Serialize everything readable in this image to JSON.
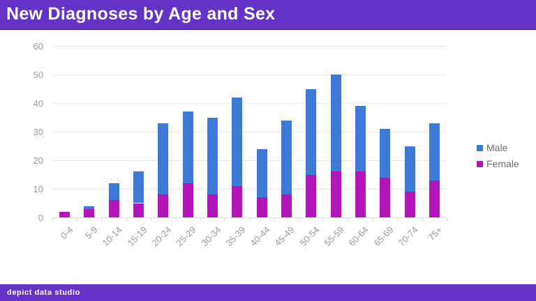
{
  "header": {
    "title": "New Diagnoses by Age and Sex"
  },
  "footer": {
    "brand": "depict data studio"
  },
  "colors": {
    "banner_bg": "#6333C6",
    "banner_edge": "#5A2DB4",
    "male": "#3D7AD8",
    "female": "#B215B8",
    "gridline": "#E7E7E7",
    "axis_line": "#DCDCDC",
    "axis_text": "#9B9B9B",
    "legend_text": "#6E6E6E"
  },
  "legend": {
    "position": "right",
    "items": [
      {
        "label": "Male",
        "color": "#3D7AD8"
      },
      {
        "label": "Female",
        "color": "#B215B8"
      }
    ]
  },
  "chart_data": {
    "type": "bar",
    "stacked": true,
    "title": "New Diagnoses by Age and Sex",
    "xlabel": "",
    "ylabel": "",
    "ylim": [
      0,
      60
    ],
    "yticks": [
      0,
      10,
      20,
      30,
      40,
      50,
      60
    ],
    "grid": true,
    "legend_position": "right",
    "categories": [
      "0-4",
      "5-9",
      "10-14",
      "15-19",
      "20-24",
      "25-29",
      "30-34",
      "35-39",
      "40-44",
      "45-49",
      "50-54",
      "55-59",
      "60-64",
      "65-69",
      "70-74",
      "75+"
    ],
    "series": [
      {
        "name": "Male",
        "color": "#3D7AD8",
        "values": [
          0,
          1,
          6,
          11,
          25,
          25,
          27,
          31,
          17,
          26,
          30,
          34,
          23,
          17,
          16,
          20
        ]
      },
      {
        "name": "Female",
        "color": "#B215B8",
        "values": [
          2,
          3,
          6,
          5,
          8,
          12,
          8,
          11,
          7,
          8,
          15,
          16,
          16,
          14,
          9,
          13
        ]
      }
    ],
    "totals": [
      2,
      4,
      12,
      16,
      33,
      37,
      35,
      42,
      24,
      34,
      45,
      50,
      39,
      31,
      25,
      33
    ]
  }
}
